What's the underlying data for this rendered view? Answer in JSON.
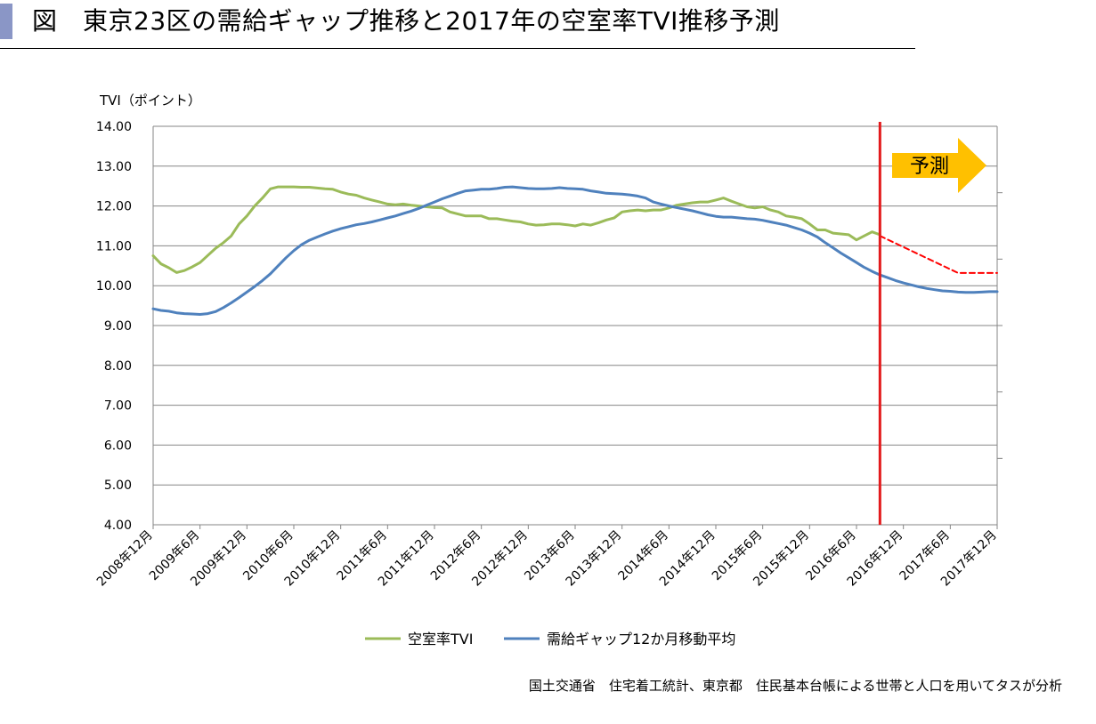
{
  "header": {
    "title": "図　東京23区の需給ギャップ推移と2017年の空室率TVI推移予測"
  },
  "source_note": "国土交通省　住宅着工統計、東京都　住民基本台帳による世帯と人口を用いてタスが分析",
  "colors": {
    "tvi": "#9bbb59",
    "gap": "#4f81bd",
    "forecast": "#ff0000",
    "marker": "#e31a1c",
    "arrow": "#ffc000",
    "grid": "#868686"
  },
  "chart_data": {
    "type": "line",
    "ylabel": "TVI（ポイント）",
    "ylim": [
      4,
      14
    ],
    "yticks": [
      "14.00",
      "13.00",
      "12.00",
      "11.00",
      "10.00",
      "9.00",
      "8.00",
      "7.00",
      "6.00",
      "5.00",
      "4.00"
    ],
    "x_range": [
      2008.917,
      2017.917
    ],
    "x_tick_labels": [
      "2008年12月",
      "2009年6月",
      "2009年12月",
      "2010年6月",
      "2010年12月",
      "2011年6月",
      "2011年12月",
      "2012年6月",
      "2012年12月",
      "2013年6月",
      "2013年12月",
      "2014年6月",
      "2014年12月",
      "2015年6月",
      "2015年12月",
      "2016年6月",
      "2016年12月",
      "2017年6月",
      "2017年12月"
    ],
    "grid": "horizontal",
    "legend_position": "bottom",
    "forecast_marker_x": 2016.667,
    "forecast_label": "予測",
    "series": [
      {
        "name": "空室率TVI",
        "key": "tvi",
        "points": [
          [
            2008.917,
            10.75
          ],
          [
            2009.0,
            10.55
          ],
          [
            2009.083,
            10.45
          ],
          [
            2009.167,
            10.33
          ],
          [
            2009.25,
            10.38
          ],
          [
            2009.333,
            10.47
          ],
          [
            2009.417,
            10.58
          ],
          [
            2009.5,
            10.76
          ],
          [
            2009.583,
            10.94
          ],
          [
            2009.667,
            11.08
          ],
          [
            2009.75,
            11.25
          ],
          [
            2009.833,
            11.55
          ],
          [
            2009.917,
            11.75
          ],
          [
            2010.0,
            12.0
          ],
          [
            2010.083,
            12.2
          ],
          [
            2010.167,
            12.43
          ],
          [
            2010.25,
            12.48
          ],
          [
            2010.333,
            12.48
          ],
          [
            2010.417,
            12.48
          ],
          [
            2010.5,
            12.47
          ],
          [
            2010.583,
            12.47
          ],
          [
            2010.667,
            12.45
          ],
          [
            2010.75,
            12.43
          ],
          [
            2010.833,
            12.42
          ],
          [
            2010.917,
            12.35
          ],
          [
            2011.0,
            12.3
          ],
          [
            2011.083,
            12.27
          ],
          [
            2011.167,
            12.2
          ],
          [
            2011.25,
            12.15
          ],
          [
            2011.333,
            12.1
          ],
          [
            2011.417,
            12.05
          ],
          [
            2011.5,
            12.03
          ],
          [
            2011.583,
            12.05
          ],
          [
            2011.667,
            12.02
          ],
          [
            2011.75,
            12.0
          ],
          [
            2011.833,
            11.98
          ],
          [
            2011.917,
            11.96
          ],
          [
            2012.0,
            11.95
          ],
          [
            2012.083,
            11.85
          ],
          [
            2012.167,
            11.8
          ],
          [
            2012.25,
            11.75
          ],
          [
            2012.333,
            11.75
          ],
          [
            2012.417,
            11.75
          ],
          [
            2012.5,
            11.68
          ],
          [
            2012.583,
            11.68
          ],
          [
            2012.667,
            11.65
          ],
          [
            2012.75,
            11.62
          ],
          [
            2012.833,
            11.6
          ],
          [
            2012.917,
            11.55
          ],
          [
            2013.0,
            11.52
          ],
          [
            2013.083,
            11.53
          ],
          [
            2013.167,
            11.55
          ],
          [
            2013.25,
            11.55
          ],
          [
            2013.333,
            11.53
          ],
          [
            2013.417,
            11.5
          ],
          [
            2013.5,
            11.55
          ],
          [
            2013.583,
            11.52
          ],
          [
            2013.667,
            11.58
          ],
          [
            2013.75,
            11.65
          ],
          [
            2013.833,
            11.7
          ],
          [
            2013.917,
            11.85
          ],
          [
            2014.0,
            11.88
          ],
          [
            2014.083,
            11.9
          ],
          [
            2014.167,
            11.88
          ],
          [
            2014.25,
            11.9
          ],
          [
            2014.333,
            11.9
          ],
          [
            2014.417,
            11.95
          ],
          [
            2014.5,
            12.02
          ],
          [
            2014.583,
            12.05
          ],
          [
            2014.667,
            12.08
          ],
          [
            2014.75,
            12.1
          ],
          [
            2014.833,
            12.1
          ],
          [
            2014.917,
            12.15
          ],
          [
            2015.0,
            12.2
          ],
          [
            2015.083,
            12.12
          ],
          [
            2015.167,
            12.05
          ],
          [
            2015.25,
            11.98
          ],
          [
            2015.333,
            11.95
          ],
          [
            2015.417,
            11.98
          ],
          [
            2015.5,
            11.9
          ],
          [
            2015.583,
            11.85
          ],
          [
            2015.667,
            11.75
          ],
          [
            2015.75,
            11.72
          ],
          [
            2015.833,
            11.68
          ],
          [
            2015.917,
            11.55
          ],
          [
            2016.0,
            11.4
          ],
          [
            2016.083,
            11.4
          ],
          [
            2016.167,
            11.32
          ],
          [
            2016.25,
            11.3
          ],
          [
            2016.333,
            11.28
          ],
          [
            2016.417,
            11.15
          ],
          [
            2016.5,
            11.25
          ],
          [
            2016.583,
            11.35
          ],
          [
            2016.667,
            11.28
          ]
        ]
      },
      {
        "name": "需給ギャップ12か月移動平均",
        "key": "gap",
        "points": [
          [
            2008.917,
            9.42
          ],
          [
            2009.0,
            9.38
          ],
          [
            2009.083,
            9.36
          ],
          [
            2009.167,
            9.32
          ],
          [
            2009.25,
            9.3
          ],
          [
            2009.333,
            9.29
          ],
          [
            2009.417,
            9.28
          ],
          [
            2009.5,
            9.3
          ],
          [
            2009.583,
            9.35
          ],
          [
            2009.667,
            9.45
          ],
          [
            2009.75,
            9.57
          ],
          [
            2009.833,
            9.7
          ],
          [
            2009.917,
            9.84
          ],
          [
            2010.0,
            9.98
          ],
          [
            2010.083,
            10.13
          ],
          [
            2010.167,
            10.3
          ],
          [
            2010.25,
            10.5
          ],
          [
            2010.333,
            10.7
          ],
          [
            2010.417,
            10.88
          ],
          [
            2010.5,
            11.03
          ],
          [
            2010.583,
            11.14
          ],
          [
            2010.667,
            11.22
          ],
          [
            2010.75,
            11.3
          ],
          [
            2010.833,
            11.37
          ],
          [
            2010.917,
            11.43
          ],
          [
            2011.0,
            11.48
          ],
          [
            2011.083,
            11.53
          ],
          [
            2011.167,
            11.56
          ],
          [
            2011.25,
            11.6
          ],
          [
            2011.333,
            11.65
          ],
          [
            2011.417,
            11.7
          ],
          [
            2011.5,
            11.75
          ],
          [
            2011.583,
            11.81
          ],
          [
            2011.667,
            11.87
          ],
          [
            2011.75,
            11.94
          ],
          [
            2011.833,
            12.02
          ],
          [
            2011.917,
            12.1
          ],
          [
            2012.0,
            12.18
          ],
          [
            2012.083,
            12.25
          ],
          [
            2012.167,
            12.32
          ],
          [
            2012.25,
            12.38
          ],
          [
            2012.333,
            12.4
          ],
          [
            2012.417,
            12.42
          ],
          [
            2012.5,
            12.42
          ],
          [
            2012.583,
            12.44
          ],
          [
            2012.667,
            12.47
          ],
          [
            2012.75,
            12.48
          ],
          [
            2012.833,
            12.46
          ],
          [
            2012.917,
            12.44
          ],
          [
            2013.0,
            12.43
          ],
          [
            2013.083,
            12.43
          ],
          [
            2013.167,
            12.44
          ],
          [
            2013.25,
            12.46
          ],
          [
            2013.333,
            12.44
          ],
          [
            2013.417,
            12.43
          ],
          [
            2013.5,
            12.42
          ],
          [
            2013.583,
            12.38
          ],
          [
            2013.667,
            12.35
          ],
          [
            2013.75,
            12.32
          ],
          [
            2013.833,
            12.31
          ],
          [
            2013.917,
            12.3
          ],
          [
            2014.0,
            12.28
          ],
          [
            2014.083,
            12.25
          ],
          [
            2014.167,
            12.2
          ],
          [
            2014.25,
            12.1
          ],
          [
            2014.333,
            12.05
          ],
          [
            2014.417,
            12.0
          ],
          [
            2014.5,
            11.96
          ],
          [
            2014.583,
            11.92
          ],
          [
            2014.667,
            11.88
          ],
          [
            2014.75,
            11.83
          ],
          [
            2014.833,
            11.78
          ],
          [
            2014.917,
            11.74
          ],
          [
            2015.0,
            11.72
          ],
          [
            2015.083,
            11.72
          ],
          [
            2015.167,
            11.7
          ],
          [
            2015.25,
            11.68
          ],
          [
            2015.333,
            11.67
          ],
          [
            2015.417,
            11.64
          ],
          [
            2015.5,
            11.6
          ],
          [
            2015.583,
            11.56
          ],
          [
            2015.667,
            11.52
          ],
          [
            2015.75,
            11.46
          ],
          [
            2015.833,
            11.4
          ],
          [
            2015.917,
            11.32
          ],
          [
            2016.0,
            11.22
          ],
          [
            2016.083,
            11.08
          ],
          [
            2016.167,
            10.95
          ],
          [
            2016.25,
            10.82
          ],
          [
            2016.333,
            10.7
          ],
          [
            2016.417,
            10.58
          ],
          [
            2016.5,
            10.46
          ],
          [
            2016.583,
            10.36
          ],
          [
            2016.667,
            10.27
          ],
          [
            2016.75,
            10.2
          ],
          [
            2016.833,
            10.13
          ],
          [
            2016.917,
            10.07
          ],
          [
            2017.0,
            10.02
          ],
          [
            2017.083,
            9.97
          ],
          [
            2017.167,
            9.93
          ],
          [
            2017.25,
            9.9
          ],
          [
            2017.333,
            9.87
          ],
          [
            2017.417,
            9.86
          ],
          [
            2017.5,
            9.84
          ],
          [
            2017.583,
            9.83
          ],
          [
            2017.667,
            9.83
          ],
          [
            2017.75,
            9.84
          ],
          [
            2017.833,
            9.85
          ],
          [
            2017.917,
            9.85
          ]
        ]
      },
      {
        "key": "forecast",
        "style": "dashed",
        "points": [
          [
            2016.667,
            11.25
          ],
          [
            2017.5,
            10.32
          ],
          [
            2017.917,
            10.32
          ]
        ]
      }
    ]
  }
}
